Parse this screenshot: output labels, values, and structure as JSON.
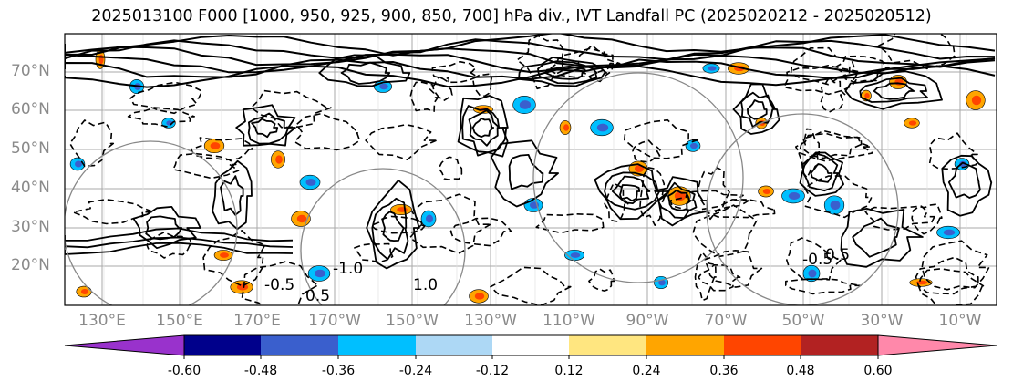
{
  "title": "2025013100 F000 [1000, 950, 925, 900, 850, 700] hPa div., IVT Landfall PC (2025020212 - 2025020512)",
  "map": {
    "lat_labels": [
      "70°N",
      "60°N",
      "50°N",
      "40°N",
      "30°N",
      "20°N"
    ],
    "lon_labels": [
      "130°E",
      "150°E",
      "170°E",
      "170°W",
      "150°W",
      "130°W",
      "110°W",
      "90°W",
      "70°W",
      "50°W",
      "30°W",
      "10°W"
    ],
    "contour_labels": [
      "-0.5",
      "0.5",
      "-1.0",
      "1.0",
      "-0.5",
      "0.5"
    ],
    "positive_colors": [
      "#ffe680",
      "#ffa500",
      "#ff4500",
      "#b22222"
    ],
    "negative_colors": [
      "#add8f5",
      "#00bfff",
      "#3a5fcd",
      "#00008b"
    ]
  },
  "colorbar": {
    "colors": [
      "#9932cc",
      "#00008b",
      "#3a5fcd",
      "#00bfff",
      "#add8f5",
      "#ffffff",
      "#ffe680",
      "#ffa500",
      "#ff4500",
      "#b22222",
      "#ff88aa"
    ],
    "tick_labels": [
      "-0.60",
      "-0.48",
      "-0.36",
      "-0.24",
      "-0.12",
      "0.12",
      "0.24",
      "0.36",
      "0.48",
      "0.60"
    ]
  }
}
